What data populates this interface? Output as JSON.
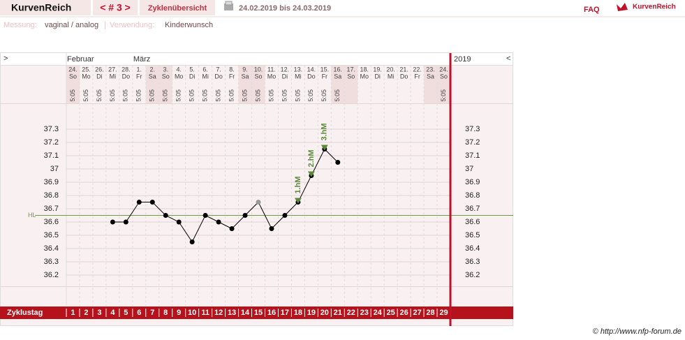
{
  "header": {
    "brand": "KurvenReich",
    "cycle": "< # 3 >",
    "tab": "Zyklenübersicht",
    "period": "24.02.2019 bis 24.03.2019",
    "faq": "FAQ",
    "logo": "KurvenReich"
  },
  "info": {
    "measure_label": "Messung:",
    "measure": "vaginal / analog",
    "separator": "|",
    "use_label": "Verwendung:",
    "use": "Kinderwunsch"
  },
  "nav": {
    "next": ">",
    "prev": "<",
    "year": "2019"
  },
  "chart_data": {
    "type": "line",
    "x_label": "Zyklustag",
    "categories": [
      1,
      2,
      3,
      4,
      5,
      6,
      7,
      8,
      9,
      10,
      11,
      12,
      13,
      14,
      15,
      16,
      17,
      18,
      19,
      20,
      21,
      22,
      23,
      24,
      25,
      26,
      27,
      28,
      29
    ],
    "months": [
      "Februar",
      null,
      null,
      null,
      null,
      "März",
      null,
      null,
      null,
      null,
      null,
      null,
      null,
      null,
      null,
      null,
      null,
      null,
      null,
      null,
      null,
      null,
      null,
      null,
      null,
      null,
      null,
      null,
      null
    ],
    "dates": [
      "24.",
      "25.",
      "26.",
      "27.",
      "28.",
      "1.",
      "2.",
      "3.",
      "4.",
      "5.",
      "6.",
      "7.",
      "8.",
      "9.",
      "10.",
      "11.",
      "12.",
      "13.",
      "14.",
      "15.",
      "16.",
      "17.",
      "18.",
      "19.",
      "20.",
      "21.",
      "22.",
      "23.",
      "24."
    ],
    "weekdays": [
      "So",
      "Mo",
      "Di",
      "Mi",
      "Do",
      "Fr",
      "Sa",
      "So",
      "Mo",
      "Di",
      "Mi",
      "Do",
      "Fr",
      "Sa",
      "So",
      "Mo",
      "Di",
      "Mi",
      "Do",
      "Fr",
      "Sa",
      "So",
      "Mo",
      "Di",
      "Mi",
      "Do",
      "Fr",
      "Sa",
      "So"
    ],
    "times": [
      "5:05",
      "5:05",
      "5:05",
      "5:05",
      "5:05",
      "5:05",
      "5:05",
      "5:05",
      "5:05",
      "5:05",
      "5:05",
      "5:05",
      "5:05",
      "5:05",
      "5:05",
      "5:05",
      "5:05",
      "5:05",
      "5:05",
      "5:05",
      "5:05",
      null,
      null,
      null,
      null,
      null,
      null,
      null,
      "5:05"
    ],
    "values": [
      null,
      null,
      null,
      36.6,
      36.6,
      36.75,
      36.75,
      36.65,
      36.6,
      36.45,
      36.65,
      36.6,
      36.55,
      36.65,
      36.75,
      36.55,
      36.65,
      36.75,
      36.95,
      37.15,
      37.05,
      null,
      null,
      null,
      null,
      null,
      null,
      null,
      null
    ],
    "point_colors": [
      null,
      null,
      null,
      "#000000",
      "#000000",
      "#000000",
      "#000000",
      "#000000",
      "#000000",
      "#000000",
      "#000000",
      "#000000",
      "#000000",
      "#000000",
      "#999999",
      "#000000",
      "#000000",
      "#000000",
      "#000000",
      "#000000",
      "#000000",
      null,
      null,
      null,
      null,
      null,
      null,
      null,
      null
    ],
    "color": "#000000",
    "ylim": [
      36.1,
      37.4
    ],
    "yticks": [
      36.2,
      36.3,
      36.4,
      36.5,
      36.6,
      36.7,
      36.8,
      36.9,
      37,
      37.1,
      37.2,
      37.3
    ],
    "grid": true,
    "hl": 36.65,
    "hl_label": "HL",
    "hl_color": "#6a9a3a",
    "annotations": [
      {
        "text": "1.hM",
        "x": 18,
        "color": "#5a8a3a"
      },
      {
        "text": "2.hM",
        "x": 19,
        "color": "#5a8a3a"
      },
      {
        "text": "3.hM",
        "x": 20,
        "color": "#5a8a3a"
      }
    ]
  },
  "footer": {
    "copyright": "© http://www.nfp-forum.de"
  }
}
